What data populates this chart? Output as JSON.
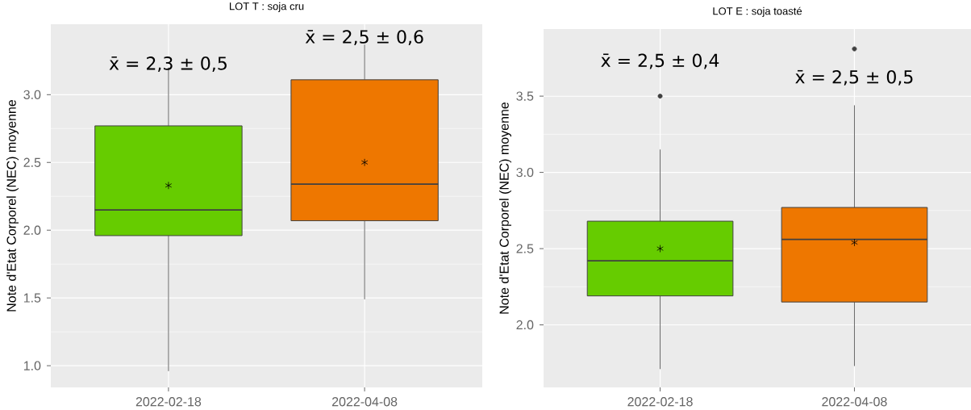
{
  "chart_data": [
    {
      "type": "box",
      "title": "LOT T : soja cru",
      "ylabel": "Note d'Etat Corporel (NEC) moyenne",
      "categories": [
        "2022-02-18",
        "2022-04-08"
      ],
      "colors": [
        "#66cc00",
        "#ee7700"
      ],
      "boxes": [
        {
          "low": 0.96,
          "q1": 1.96,
          "median": 2.15,
          "q3": 2.77,
          "high": 3.2,
          "mean": 2.33
        },
        {
          "low": 1.49,
          "q1": 2.07,
          "median": 2.34,
          "q3": 3.11,
          "high": 3.37,
          "mean": 2.5
        }
      ],
      "ylim": [
        0.84,
        3.52
      ],
      "yticks": [
        {
          "value": 1.0,
          "label": "1.0"
        },
        {
          "value": 1.5,
          "label": "1.5"
        },
        {
          "value": 2.0,
          "label": "2.0"
        },
        {
          "value": 2.5,
          "label": "2.5"
        },
        {
          "value": 3.0,
          "label": "3.0"
        }
      ],
      "grid": true,
      "annotations": [
        "x̄ = 2,3 ± 0,5",
        "x̄ = 2,5 ± 0,6"
      ]
    },
    {
      "type": "box",
      "title": "LOT E : soja toasté",
      "ylabel": "Note d'Etat Corporel (NEC) moyenne",
      "categories": [
        "2022-02-18",
        "2022-04-08"
      ],
      "colors": [
        "#66cc00",
        "#ee7700"
      ],
      "boxes": [
        {
          "low": 1.71,
          "q1": 2.19,
          "median": 2.42,
          "q3": 2.68,
          "high": 3.15,
          "mean": 2.5,
          "outliers": [
            3.5
          ]
        },
        {
          "low": 1.73,
          "q1": 2.15,
          "median": 2.56,
          "q3": 2.77,
          "high": 3.44,
          "mean": 2.54,
          "outliers": [
            3.81
          ]
        }
      ],
      "ylim": [
        1.59,
        3.94
      ],
      "yticks": [
        {
          "value": 2.0,
          "label": "2.0"
        },
        {
          "value": 2.5,
          "label": "2.5"
        },
        {
          "value": 3.0,
          "label": "3.0"
        },
        {
          "value": 3.5,
          "label": "3.5"
        }
      ],
      "grid": true,
      "annotations": [
        "x̄ = 2,5 ± 0,4",
        "x̄ = 2,5 ± 0,5"
      ]
    }
  ]
}
